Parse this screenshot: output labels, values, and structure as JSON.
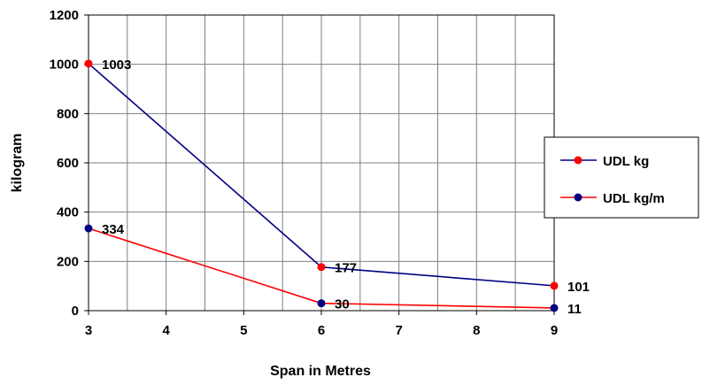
{
  "chart_data": {
    "type": "line",
    "title": "",
    "xlabel": "Span in Metres",
    "ylabel": "kilogram",
    "xlim": [
      3,
      9
    ],
    "ylim": [
      0,
      1200
    ],
    "x_ticks": [
      3,
      4,
      5,
      6,
      7,
      8,
      9
    ],
    "y_ticks": [
      0,
      200,
      400,
      600,
      800,
      1000,
      1200
    ],
    "grid": true,
    "legend_position": "right",
    "legend": [
      {
        "label": "UDL kg",
        "line_color": "#000080",
        "marker_color": "#ff0000"
      },
      {
        "label": "UDL kg/m",
        "line_color": "#ff0000",
        "marker_color": "#000080"
      }
    ],
    "series": [
      {
        "line_color": "#000080",
        "marker_color": "#ff0000",
        "points": [
          {
            "x": 3,
            "y": 1003,
            "label": "1003"
          },
          {
            "x": 6,
            "y": 177,
            "label": "177"
          },
          {
            "x": 9,
            "y": 101,
            "label": "101"
          }
        ]
      },
      {
        "line_color": "#ff0000",
        "marker_color": "#000080",
        "points": [
          {
            "x": 3,
            "y": 334,
            "label": "334"
          },
          {
            "x": 6,
            "y": 30,
            "label": "30"
          },
          {
            "x": 9,
            "y": 11,
            "label": "11"
          }
        ]
      }
    ]
  }
}
